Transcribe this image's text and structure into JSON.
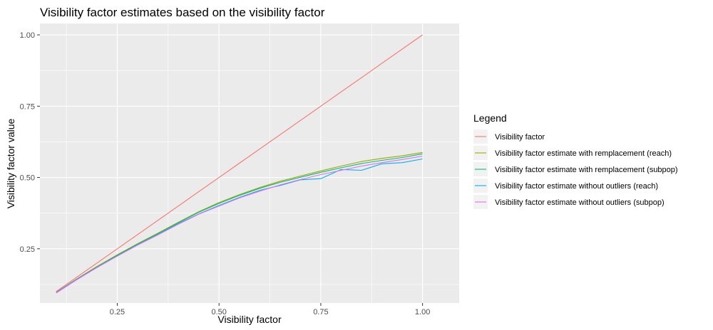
{
  "chart_data": {
    "type": "line",
    "title": "Visibility factor estimates based on the visibility factor",
    "xlabel": "Visibility factor",
    "ylabel": "Visibility factor value",
    "xlim": [
      0.06,
      1.09
    ],
    "ylim": [
      0.06,
      1.04
    ],
    "xticks": [
      0.25,
      0.5,
      0.75,
      1.0
    ],
    "xtick_labels": [
      "0.25",
      "0.50",
      "0.75",
      "1.00"
    ],
    "yticks": [
      0.25,
      0.5,
      0.75,
      1.0
    ],
    "ytick_labels": [
      "0.25",
      "0.50",
      "0.75",
      "1.00"
    ],
    "grid": true,
    "legend": {
      "title": "Legend",
      "placement": "right"
    },
    "x": [
      0.1,
      0.15,
      0.2,
      0.25,
      0.3,
      0.35,
      0.4,
      0.45,
      0.5,
      0.55,
      0.6,
      0.65,
      0.7,
      0.75,
      0.8,
      0.85,
      0.9,
      0.95,
      1.0
    ],
    "series": [
      {
        "name": "Visibility factor",
        "color": "#F8766D",
        "values": [
          0.1,
          0.15,
          0.2,
          0.25,
          0.3,
          0.35,
          0.4,
          0.45,
          0.5,
          0.55,
          0.6,
          0.65,
          0.7,
          0.75,
          0.8,
          0.85,
          0.9,
          0.95,
          1.0
        ]
      },
      {
        "name": "Visibility factor estimate with remplacement (reach)",
        "color": "#A3A500",
        "values": [
          0.097,
          0.144,
          0.188,
          0.229,
          0.268,
          0.305,
          0.343,
          0.38,
          0.412,
          0.44,
          0.465,
          0.487,
          0.505,
          0.523,
          0.54,
          0.556,
          0.567,
          0.576,
          0.588
        ]
      },
      {
        "name": "Visibility factor estimate with remplacement (subpop)",
        "color": "#00BF7D",
        "values": [
          0.097,
          0.143,
          0.186,
          0.227,
          0.266,
          0.303,
          0.341,
          0.378,
          0.409,
          0.437,
          0.462,
          0.483,
          0.501,
          0.518,
          0.534,
          0.549,
          0.56,
          0.57,
          0.583
        ]
      },
      {
        "name": "Visibility factor estimate without outliers (reach)",
        "color": "#00B0F6",
        "values": [
          0.096,
          0.142,
          0.185,
          0.225,
          0.264,
          0.3,
          0.338,
          0.372,
          0.402,
          0.43,
          0.455,
          0.472,
          0.492,
          0.496,
          0.528,
          0.525,
          0.548,
          0.552,
          0.565
        ]
      },
      {
        "name": "Visibility factor estimate without outliers (subpop)",
        "color": "#E76BF3",
        "values": [
          0.095,
          0.141,
          0.184,
          0.224,
          0.263,
          0.299,
          0.336,
          0.371,
          0.4,
          0.428,
          0.452,
          0.474,
          0.493,
          0.51,
          0.525,
          0.54,
          0.552,
          0.563,
          0.575
        ]
      }
    ]
  }
}
